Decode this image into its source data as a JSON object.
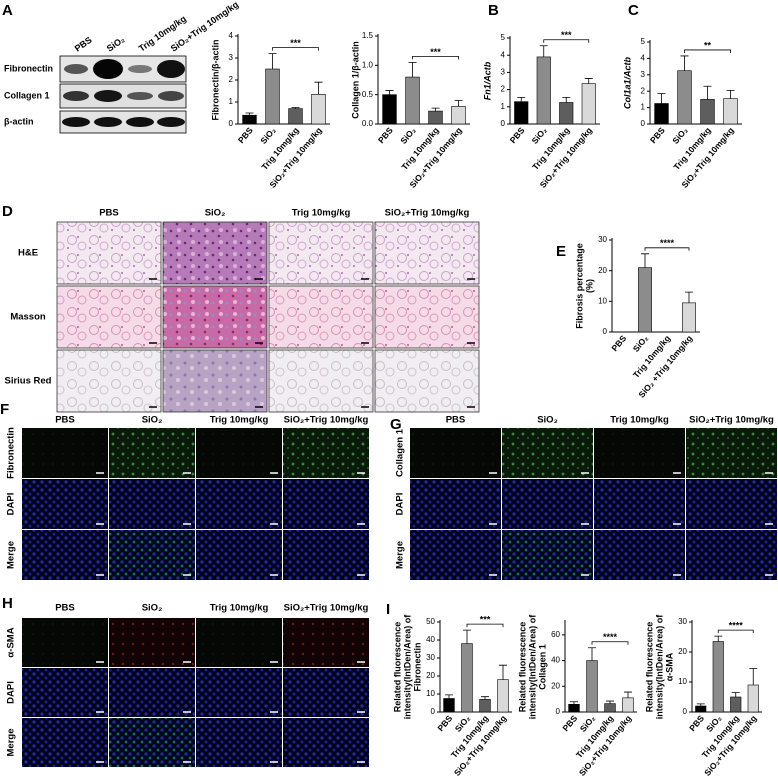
{
  "panel_labels": [
    "A",
    "B",
    "C",
    "D",
    "E",
    "F",
    "G",
    "H",
    "I"
  ],
  "blot": {
    "lanes": [
      "PBS",
      "SiO₂",
      "Trig 10mg/kg",
      "SiO₂+Trig 10mg/kg"
    ],
    "rows": [
      "Fibronectin",
      "Collagen 1",
      "β-actin"
    ]
  },
  "histology": {
    "columns": [
      "PBS",
      "SiO₂",
      "Trig 10mg/kg",
      "SiO₂+Trig 10mg/kg"
    ],
    "rows": [
      "H&E",
      "Masson",
      "Sirius Red"
    ]
  },
  "if_F": {
    "columns": [
      "PBS",
      "SiO₂",
      "Trig 10mg/kg",
      "SiO₂+Trig 10mg/kg"
    ],
    "rows": [
      "Fibronectin",
      "DAPI",
      "Merge"
    ]
  },
  "if_G": {
    "columns": [
      "PBS",
      "SiO₂",
      "Trig 10mg/kg",
      "SiO₂+Trig 10mg/kg"
    ],
    "rows": [
      "Collagen 1",
      "DAPI",
      "Merge"
    ]
  },
  "if_H": {
    "columns": [
      "PBS",
      "SiO₂",
      "Trig 10mg/kg",
      "SiO₂+Trig 10mg/kg"
    ],
    "rows": [
      "α-SMA",
      "DAPI",
      "Merge"
    ]
  },
  "chart_data": [
    {
      "type": "bar",
      "ylabel": [
        "Fibronectin/β-actin"
      ],
      "categories": [
        "PBS",
        "SiO₂",
        "Trig 10mg/kg",
        "SiO₂+Trig 10mg/kg"
      ],
      "values": [
        0.4,
        2.5,
        0.7,
        1.35
      ],
      "errors": [
        0.1,
        0.7,
        0.05,
        0.55
      ],
      "colors": [
        "#000000",
        "#8c8c8c",
        "#5e5e5e",
        "#d9d9d9"
      ],
      "ylim": [
        0,
        4
      ],
      "yticks": [
        0,
        1,
        2,
        3,
        4
      ],
      "significance": {
        "text": "***",
        "between": [
          "SiO₂",
          "SiO₂+Trig 10mg/kg"
        ]
      }
    },
    {
      "type": "bar",
      "ylabel": [
        "Collagen 1/β-actin"
      ],
      "categories": [
        "PBS",
        "SiO₂",
        "Trig 10mg/kg",
        "SiO₂+Trig 10mg/kg"
      ],
      "values": [
        0.5,
        0.8,
        0.22,
        0.3
      ],
      "errors": [
        0.07,
        0.25,
        0.05,
        0.1
      ],
      "colors": [
        "#000000",
        "#8c8c8c",
        "#5e5e5e",
        "#d9d9d9"
      ],
      "ylim": [
        0,
        1.5
      ],
      "yticks": [
        {
          "value": 0,
          "label": "0.0"
        },
        0.5,
        {
          "value": 1,
          "label": "1.0"
        },
        1.5
      ],
      "significance": {
        "text": "***",
        "between": [
          "SiO₂",
          "SiO₂+Trig 10mg/kg"
        ]
      }
    },
    {
      "type": "bar",
      "ylabel": [
        "Fn1/Actb"
      ],
      "ylabel_italic": true,
      "categories": [
        "PBS",
        "SiO₂",
        "Trig 10mg/kg",
        "SiO₂+Trig 10mg/kg"
      ],
      "values": [
        1.3,
        3.9,
        1.25,
        2.35
      ],
      "errors": [
        0.25,
        0.65,
        0.3,
        0.3
      ],
      "colors": [
        "#000000",
        "#8c8c8c",
        "#5e5e5e",
        "#d9d9d9"
      ],
      "ylim": [
        0,
        5
      ],
      "yticks": [
        0,
        1,
        2,
        3,
        4,
        5
      ],
      "significance": {
        "text": "***",
        "between": [
          "SiO₂",
          "SiO₂+Trig 10mg/kg"
        ]
      }
    },
    {
      "type": "bar",
      "ylabel": [
        "Col1a1/Actb"
      ],
      "ylabel_italic": true,
      "categories": [
        "PBS",
        "SiO₂",
        "Trig 10mg/kg",
        "SiO₂+Trig 10mg/kg"
      ],
      "values": [
        1.25,
        3.25,
        1.5,
        1.55
      ],
      "errors": [
        0.6,
        0.9,
        0.8,
        0.5
      ],
      "colors": [
        "#000000",
        "#8c8c8c",
        "#5e5e5e",
        "#d9d9d9"
      ],
      "ylim": [
        0,
        5
      ],
      "yticks": [
        0,
        1,
        2,
        3,
        4,
        5
      ],
      "significance": {
        "text": "**",
        "between": [
          "SiO₂",
          "SiO₂+Trig 10mg/kg"
        ]
      }
    },
    {
      "type": "bar",
      "ylabel": [
        "Fibrosis percentage",
        "(%)"
      ],
      "categories": [
        "PBS",
        "SiO₂",
        "Trig 10mg/kg",
        "SiO₂ +Trig 10mg/kg"
      ],
      "values": [
        0,
        21,
        0,
        9.5
      ],
      "errors": [
        0,
        4.5,
        0,
        3.5
      ],
      "colors": [
        "#000000",
        "#8c8c8c",
        "#5e5e5e",
        "#d9d9d9"
      ],
      "ylim": [
        0,
        30
      ],
      "yticks": [
        0,
        10,
        20,
        30
      ],
      "significance": {
        "text": "****",
        "between": [
          "SiO₂",
          "SiO₂ +Trig 10mg/kg"
        ]
      }
    },
    {
      "type": "bar",
      "ylabel": [
        "Related fluorescence",
        "intensity(IntDen/Area) of",
        "Fibronectin"
      ],
      "categories": [
        "PBS",
        "SiO₂",
        "Trig 10mg/kg",
        "SiO₂+Trig 10mg/kg"
      ],
      "values": [
        7.5,
        38,
        7,
        18
      ],
      "errors": [
        2,
        7.5,
        1.5,
        8
      ],
      "colors": [
        "#000000",
        "#8c8c8c",
        "#5e5e5e",
        "#d9d9d9"
      ],
      "ylim": [
        0,
        50
      ],
      "yticks": [
        0,
        10,
        20,
        30,
        40,
        50
      ],
      "significance": {
        "text": "***",
        "between": [
          "SiO₂",
          "SiO₂+Trig 10mg/kg"
        ]
      }
    },
    {
      "type": "bar",
      "ylabel": [
        "Related fluorescence",
        "intensity(IntDen/Area) of",
        "Collagen 1"
      ],
      "categories": [
        "PBS",
        "SiO₂",
        "Trig 10mg/kg",
        "SiO₂+Trig 10mg/kg"
      ],
      "values": [
        6,
        40,
        6.5,
        11
      ],
      "errors": [
        2,
        10,
        2,
        4.5
      ],
      "colors": [
        "#000000",
        "#8c8c8c",
        "#5e5e5e",
        "#d9d9d9"
      ],
      "ylim": [
        0,
        70
      ],
      "yticks": [
        0,
        20,
        40,
        60
      ],
      "significance": {
        "text": "****",
        "between": [
          "SiO₂",
          "SiO₂+Trig 10mg/kg"
        ]
      }
    },
    {
      "type": "bar",
      "ylabel": [
        "Related fluorescence",
        "intensity(IntDen/Area) of",
        "α-SMA"
      ],
      "categories": [
        "PBS",
        "SiO₂",
        "Trig 10mg/kg",
        "SiO₂+Trig 10mg/kg"
      ],
      "values": [
        2,
        23.5,
        5,
        9
      ],
      "errors": [
        0.7,
        1.8,
        1.5,
        5.5
      ],
      "colors": [
        "#000000",
        "#8c8c8c",
        "#5e5e5e",
        "#d9d9d9"
      ],
      "ylim": [
        0,
        30
      ],
      "yticks": [
        0,
        10,
        20,
        30
      ],
      "significance": {
        "text": "****",
        "between": [
          "SiO₂",
          "SiO₂+Trig 10mg/kg"
        ]
      }
    }
  ]
}
